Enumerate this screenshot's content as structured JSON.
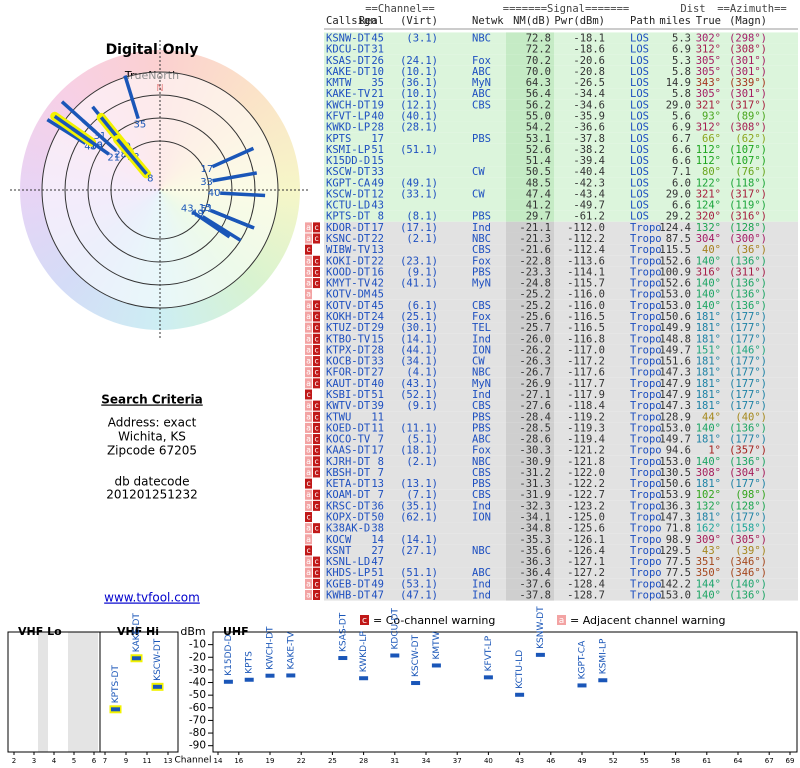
{
  "left": {
    "title": "Digital Only",
    "north_label": "TrueNorth",
    "north_mark": "N",
    "criteria_title": "Search Criteria",
    "criteria": [
      "Address: exact",
      "Wichita, KS",
      "Zipcode 67205"
    ],
    "datecode_label": "db datecode",
    "datecode": "201201251232",
    "link": "www.tvfool.com"
  },
  "table": {
    "group_headers": [
      "==Channel==",
      "=======Signal=======",
      "Dist",
      "==Azimuth=="
    ],
    "headers": [
      "Callsign",
      "Real",
      "(Virt)",
      "Netwk",
      "NM(dB)",
      "Pwr(dBm)",
      "Path",
      "miles",
      "True",
      "(Magn)"
    ],
    "rows": [
      [
        "KSNW-DT",
        "45",
        "(3.1)",
        "NBC",
        "72.8",
        "-18.1",
        "LOS",
        "5.3",
        "302°",
        "(298°)"
      ],
      [
        "KDCU-DT",
        "31",
        null,
        null,
        "72.2",
        "-18.6",
        "LOS",
        "6.9",
        "312°",
        "(308°)"
      ],
      [
        "KSAS-DT",
        "26",
        "(24.1)",
        "Fox",
        "70.2",
        "-20.6",
        "LOS",
        "5.3",
        "305°",
        "(301°)"
      ],
      [
        "KAKE-DT",
        "10",
        "(10.1)",
        "ABC",
        "70.0",
        "-20.8",
        "LOS",
        "5.8",
        "305°",
        "(301°)"
      ],
      [
        "KMTW",
        "35",
        "(36.1)",
        "MyN",
        "64.3",
        "-26.5",
        "LOS",
        "14.9",
        "343°",
        "(339°)"
      ],
      [
        "KAKE-TV",
        "21",
        "(10.1)",
        "ABC",
        "56.4",
        "-34.4",
        "LOS",
        "5.8",
        "305°",
        "(301°)"
      ],
      [
        "KWCH-DT",
        "19",
        "(12.1)",
        "CBS",
        "56.2",
        "-34.6",
        "LOS",
        "29.0",
        "321°",
        "(317°)"
      ],
      [
        "KFVT-LP",
        "40",
        "(40.1)",
        null,
        "55.0",
        "-35.9",
        "LOS",
        "5.6",
        "93°",
        "(89°)"
      ],
      [
        "KWKD-LP",
        "28",
        "(28.1)",
        null,
        "54.2",
        "-36.6",
        "LOS",
        "6.9",
        "312°",
        "(308°)"
      ],
      [
        "KPTS",
        "17",
        null,
        "PBS",
        "53.1",
        "-37.8",
        "LOS",
        "6.7",
        "66°",
        "(62°)"
      ],
      [
        "KSMI-LP",
        "51",
        "(51.1)",
        null,
        "52.6",
        "-38.2",
        "LOS",
        "6.6",
        "112°",
        "(107°)"
      ],
      [
        "K15DD-D",
        "15",
        null,
        null,
        "51.4",
        "-39.4",
        "LOS",
        "6.6",
        "112°",
        "(107°)"
      ],
      [
        "KSCW-DT",
        "33",
        null,
        "CW",
        "50.5",
        "-40.4",
        "LOS",
        "7.1",
        "80°",
        "(76°)"
      ],
      [
        "KGPT-CA",
        "49",
        "(49.1)",
        null,
        "48.5",
        "-42.3",
        "LOS",
        "6.0",
        "122°",
        "(118°)"
      ],
      [
        "KSCW-DT",
        "12",
        "(33.1)",
        "CW",
        "47.4",
        "-43.4",
        "LOS",
        "29.0",
        "321°",
        "(317°)"
      ],
      [
        "KCTU-LD",
        "43",
        null,
        null,
        "41.2",
        "-49.7",
        "LOS",
        "6.6",
        "124°",
        "(119°)"
      ],
      [
        "KPTS-DT",
        "8",
        "(8.1)",
        "PBS",
        "29.7",
        "-61.2",
        "LOS",
        "29.2",
        "320°",
        "(316°)"
      ],
      [
        "KDOR-DT",
        "17",
        "(17.1)",
        "Ind",
        "-21.1",
        "-112.0",
        "Tropo",
        "124.4",
        "132°",
        "(128°)"
      ],
      [
        "KSNC-DT",
        "22",
        "(2.1)",
        "NBC",
        "-21.3",
        "-112.2",
        "Tropo",
        "87.5",
        "304°",
        "(300°)"
      ],
      [
        "WIBW-TV",
        "13",
        null,
        "CBS",
        "-21.6",
        "-112.4",
        "Tropo",
        "115.5",
        "40°",
        "(36°)"
      ],
      [
        "KOKI-DT",
        "22",
        "(23.1)",
        "Fox",
        "-22.8",
        "-113.6",
        "Tropo",
        "152.6",
        "140°",
        "(136°)"
      ],
      [
        "KOOD-DT",
        "16",
        "(9.1)",
        "PBS",
        "-23.3",
        "-114.1",
        "Tropo",
        "100.9",
        "316°",
        "(311°)"
      ],
      [
        "KMYT-TV",
        "42",
        "(41.1)",
        "MyN",
        "-24.8",
        "-115.7",
        "Tropo",
        "152.6",
        "140°",
        "(136°)"
      ],
      [
        "KOTV-DM",
        "45",
        null,
        null,
        "-25.2",
        "-116.0",
        "Tropo",
        "153.0",
        "140°",
        "(136°)"
      ],
      [
        "KOTV-DT",
        "45",
        "(6.1)",
        "CBS",
        "-25.2",
        "-116.0",
        "Tropo",
        "153.0",
        "140°",
        "(136°)"
      ],
      [
        "KOKH-DT",
        "24",
        "(25.1)",
        "Fox",
        "-25.6",
        "-116.5",
        "Tropo",
        "150.6",
        "181°",
        "(177°)"
      ],
      [
        "KTUZ-DT",
        "29",
        "(30.1)",
        "TEL",
        "-25.7",
        "-116.5",
        "Tropo",
        "149.9",
        "181°",
        "(177°)"
      ],
      [
        "KTBO-TV",
        "15",
        "(14.1)",
        "Ind",
        "-26.0",
        "-116.8",
        "Tropo",
        "148.8",
        "181°",
        "(177°)"
      ],
      [
        "KTPX-DT",
        "28",
        "(44.1)",
        "ION",
        "-26.2",
        "-117.0",
        "Tropo",
        "149.7",
        "151°",
        "(146°)"
      ],
      [
        "KOCB-DT",
        "33",
        "(34.1)",
        "CW",
        "-26.3",
        "-117.2",
        "Tropo",
        "151.6",
        "181°",
        "(177°)"
      ],
      [
        "KFOR-DT",
        "27",
        "(4.1)",
        "NBC",
        "-26.7",
        "-117.6",
        "Tropo",
        "147.3",
        "181°",
        "(177°)"
      ],
      [
        "KAUT-DT",
        "40",
        "(43.1)",
        "MyN",
        "-26.9",
        "-117.7",
        "Tropo",
        "147.9",
        "181°",
        "(177°)"
      ],
      [
        "KSBI-DT",
        "51",
        "(52.1)",
        "Ind",
        "-27.1",
        "-117.9",
        "Tropo",
        "147.9",
        "181°",
        "(177°)"
      ],
      [
        "KWTV-DT",
        "39",
        "(9.1)",
        "CBS",
        "-27.6",
        "-118.4",
        "Tropo",
        "147.3",
        "181°",
        "(177°)"
      ],
      [
        "KTWU",
        "11",
        null,
        "PBS",
        "-28.4",
        "-119.2",
        "Tropo",
        "128.9",
        "44°",
        "(40°)"
      ],
      [
        "KOED-DT",
        "11",
        "(11.1)",
        "PBS",
        "-28.5",
        "-119.3",
        "Tropo",
        "153.0",
        "140°",
        "(136°)"
      ],
      [
        "KOCO-TV",
        "7",
        "(5.1)",
        "ABC",
        "-28.6",
        "-119.4",
        "Tropo",
        "149.7",
        "181°",
        "(177°)"
      ],
      [
        "KAAS-DT",
        "17",
        "(18.1)",
        "Fox",
        "-30.3",
        "-121.2",
        "Tropo",
        "94.6",
        "1°",
        "(357°)"
      ],
      [
        "KJRH-DT",
        "8",
        "(2.1)",
        "NBC",
        "-30.9",
        "-121.8",
        "Tropo",
        "153.0",
        "140°",
        "(136°)"
      ],
      [
        "KBSH-DT",
        "7",
        null,
        "CBS",
        "-31.2",
        "-122.0",
        "Tropo",
        "130.5",
        "308°",
        "(304°)"
      ],
      [
        "KETA-DT",
        "13",
        "(13.1)",
        "PBS",
        "-31.3",
        "-122.2",
        "Tropo",
        "150.6",
        "181°",
        "(177°)"
      ],
      [
        "KOAM-DT",
        "7",
        "(7.1)",
        "CBS",
        "-31.9",
        "-122.7",
        "Tropo",
        "153.9",
        "102°",
        "(98°)"
      ],
      [
        "KRSC-DT",
        "36",
        "(35.1)",
        "Ind",
        "-32.3",
        "-123.2",
        "Tropo",
        "136.3",
        "132°",
        "(128°)"
      ],
      [
        "KOPX-DT",
        "50",
        "(62.1)",
        "ION",
        "-34.1",
        "-125.0",
        "Tropo",
        "147.3",
        "181°",
        "(177°)"
      ],
      [
        "K38AK-D",
        "38",
        null,
        null,
        "-34.8",
        "-125.6",
        "Tropo",
        "71.8",
        "162°",
        "(158°)"
      ],
      [
        "KOCW",
        "14",
        "(14.1)",
        null,
        "-35.3",
        "-126.1",
        "Tropo",
        "98.9",
        "309°",
        "(305°)"
      ],
      [
        "KSNT",
        "27",
        "(27.1)",
        "NBC",
        "-35.6",
        "-126.4",
        "Tropo",
        "129.5",
        "43°",
        "(39°)"
      ],
      [
        "KSNL-LD",
        "47",
        null,
        null,
        "-36.3",
        "-127.1",
        "Tropo",
        "77.5",
        "351°",
        "(346°)"
      ],
      [
        "KHDS-LP",
        "51",
        "(51.1)",
        "ABC",
        "-36.4",
        "-127.2",
        "Tropo",
        "77.5",
        "350°",
        "(346°)"
      ],
      [
        "KGEB-DT",
        "49",
        "(53.1)",
        "Ind",
        "-37.6",
        "-128.4",
        "Tropo",
        "142.2",
        "144°",
        "(140°)"
      ],
      [
        "KWHB-DT",
        "47",
        "(47.1)",
        "Ind",
        "-37.8",
        "-128.7",
        "Tropo",
        "153.0",
        "140°",
        "(136°)"
      ]
    ],
    "warnings": [
      [],
      [],
      [],
      [],
      [],
      [],
      [],
      [],
      [],
      [],
      [],
      [],
      [],
      [],
      [],
      [],
      [],
      [
        "a",
        "c"
      ],
      [
        "a",
        "c"
      ],
      [
        "c"
      ],
      [
        "a",
        "c"
      ],
      [
        "a",
        "c"
      ],
      [
        "a",
        "c"
      ],
      [
        "a"
      ],
      [
        "a",
        "c"
      ],
      [
        "a",
        "c"
      ],
      [
        "a",
        "c"
      ],
      [
        "a",
        "c"
      ],
      [
        "a",
        "c"
      ],
      [
        "a",
        "c"
      ],
      [
        "a",
        "c"
      ],
      [
        "a",
        "c"
      ],
      [
        "c"
      ],
      [
        "a",
        "c"
      ],
      [
        "a",
        "c"
      ],
      [
        "a",
        "c"
      ],
      [
        "a",
        "c"
      ],
      [
        "a",
        "c"
      ],
      [
        "a",
        "c"
      ],
      [
        "a",
        "c"
      ],
      [
        "c"
      ],
      [
        "a",
        "c"
      ],
      [
        "a",
        "c"
      ],
      [
        "c"
      ],
      [
        "a",
        "c"
      ],
      [
        "a"
      ],
      [
        "c"
      ],
      [
        "a",
        "c"
      ],
      [
        "a",
        "c"
      ],
      [
        "a",
        "c"
      ],
      [
        "a",
        "c"
      ]
    ]
  },
  "legend": {
    "co_mark": "c",
    "co_text": "= Co-channel warning",
    "adj_mark": "a",
    "adj_text": "= Adjacent channel warning"
  },
  "spectrum": {
    "sections": [
      "VHF Lo",
      "VHF Hi",
      "UHF"
    ],
    "y_label": "dBm",
    "x_label": "Channel",
    "ylim": [
      0,
      -95
    ],
    "yticks": [
      -10,
      -20,
      -30,
      -40,
      -50,
      -60,
      -70,
      -80,
      -90
    ],
    "xticks": [
      2,
      3,
      4,
      5,
      6,
      7,
      9,
      11,
      13,
      14,
      16,
      19,
      22,
      25,
      28,
      31,
      34,
      37,
      40,
      43,
      46,
      49,
      52,
      55,
      58,
      61,
      64,
      67,
      69
    ]
  }
}
